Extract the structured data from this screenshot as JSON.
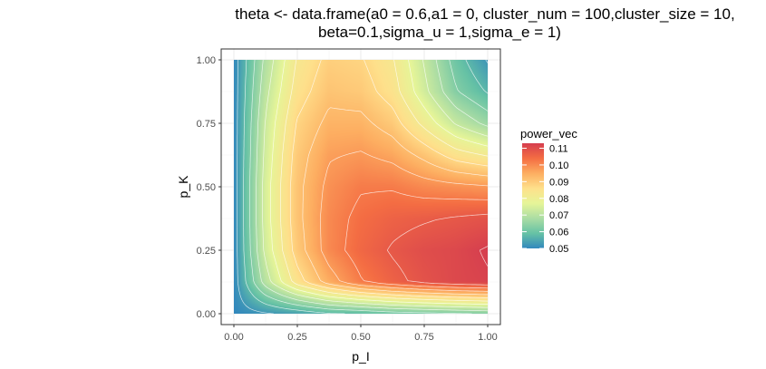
{
  "chart_data": {
    "type": "heatmap",
    "title_lines": [
      "theta <- data.frame(a0 = 0.6,a1 = 0, cluster_num = 100,cluster_size = 10,",
      "beta=0.1,sigma_u = 1,sigma_e = 1)"
    ],
    "xlabel": "p_I",
    "ylabel": "p_K",
    "xlim": [
      0,
      1
    ],
    "ylim": [
      0,
      1
    ],
    "x_ticks": [
      0.0,
      0.25,
      0.5,
      0.75,
      1.0
    ],
    "x_tick_labels": [
      "0.00",
      "0.25",
      "0.50",
      "0.75",
      "1.00"
    ],
    "y_ticks": [
      0.0,
      0.25,
      0.5,
      0.75,
      1.0
    ],
    "y_tick_labels": [
      "0.00",
      "0.25",
      "0.50",
      "0.75",
      "1.00"
    ],
    "grid": true,
    "contours": true,
    "legend": {
      "title": "power_vec",
      "placement": "right",
      "range": [
        0.05,
        0.113
      ],
      "breaks": [
        0.05,
        0.06,
        0.07,
        0.08,
        0.09,
        0.1,
        0.11
      ],
      "labels": [
        "0.05",
        "0.06",
        "0.07",
        "0.08",
        "0.09",
        "0.10",
        "0.11"
      ]
    },
    "palette": "Spectral (reversed)",
    "palette_colors": [
      "#3288bd",
      "#66c2a5",
      "#abdda4",
      "#e6f598",
      "#fee08b",
      "#fdae61",
      "#f46d43",
      "#d53e4f"
    ],
    "z_grid": {
      "x": [
        0.0,
        0.125,
        0.25,
        0.375,
        0.5,
        0.625,
        0.75,
        0.875,
        1.0
      ],
      "y": [
        0.0,
        0.125,
        0.25,
        0.375,
        0.5,
        0.625,
        0.75,
        0.875,
        1.0
      ],
      "values_by_row_y": [
        [
          0.05,
          0.052,
          0.054,
          0.057,
          0.058,
          0.06,
          0.061,
          0.062,
          0.063
        ],
        [
          0.05,
          0.07,
          0.085,
          0.095,
          0.102,
          0.106,
          0.109,
          0.111,
          0.112
        ],
        [
          0.05,
          0.074,
          0.09,
          0.1,
          0.105,
          0.108,
          0.11,
          0.111,
          0.113
        ],
        [
          0.05,
          0.075,
          0.091,
          0.1,
          0.104,
          0.106,
          0.107,
          0.108,
          0.109
        ],
        [
          0.05,
          0.075,
          0.091,
          0.099,
          0.102,
          0.102,
          0.1,
          0.099,
          0.098
        ],
        [
          0.05,
          0.074,
          0.09,
          0.097,
          0.098,
          0.096,
          0.091,
          0.085,
          0.082
        ],
        [
          0.05,
          0.073,
          0.088,
          0.094,
          0.094,
          0.09,
          0.081,
          0.072,
          0.066
        ],
        [
          0.05,
          0.071,
          0.085,
          0.091,
          0.09,
          0.085,
          0.074,
          0.063,
          0.057
        ],
        [
          0.05,
          0.069,
          0.083,
          0.089,
          0.088,
          0.083,
          0.072,
          0.06,
          0.052
        ]
      ]
    }
  }
}
